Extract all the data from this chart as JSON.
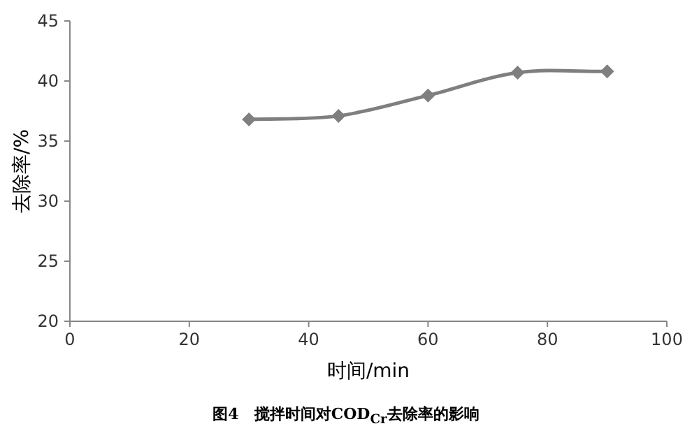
{
  "chart_data": {
    "type": "line",
    "title": "图4　搅拌时间对COD$_{Cr}$去除率的影响",
    "xlabel": "时间/min",
    "ylabel": "去除率/%",
    "x": [
      30,
      45,
      60,
      75,
      90
    ],
    "series": [
      {
        "color": "#7f7f7f",
        "values": [
          36.8,
          37.1,
          38.8,
          40.7,
          40.8
        ]
      }
    ],
    "xlim": [
      0,
      100
    ],
    "xticks": [
      0,
      20,
      40,
      60,
      80,
      100
    ],
    "ylim": [
      20,
      45
    ],
    "yticks": [
      20,
      25,
      30,
      35,
      40,
      45
    ],
    "marker": "diamond",
    "line_style": "solid"
  }
}
